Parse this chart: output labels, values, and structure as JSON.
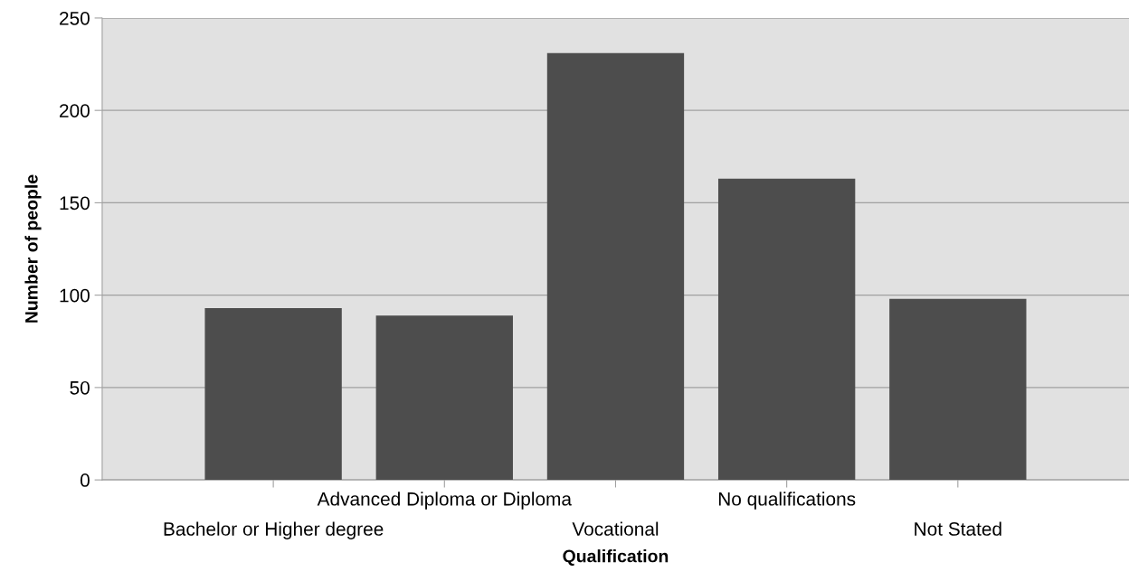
{
  "chart_data": {
    "type": "bar",
    "xlabel": "Qualification",
    "ylabel": "Number of people",
    "categories": [
      "Bachelor or Higher degree",
      "Advanced Diploma or Diploma",
      "Vocational",
      "No qualifications",
      "Not Stated"
    ],
    "values": [
      93,
      89,
      231,
      163,
      98
    ],
    "color": "#4d4d4d",
    "ylim": [
      0,
      250
    ],
    "yticks": [
      0,
      50,
      100,
      150,
      200,
      250
    ],
    "grid": "y"
  }
}
